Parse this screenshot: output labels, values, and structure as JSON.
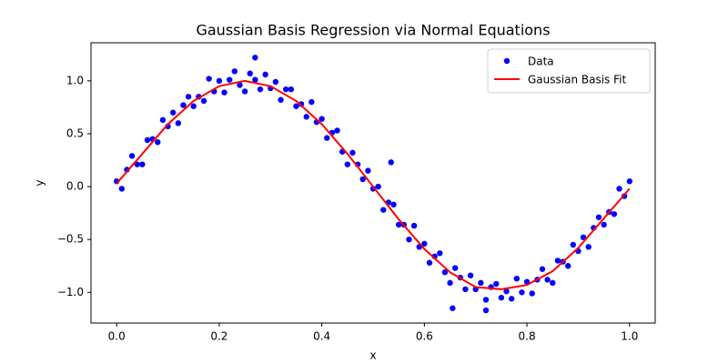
{
  "chart_data": {
    "type": "scatter",
    "title": "Gaussian Basis Regression via Normal Equations",
    "xlabel": "x",
    "ylabel": "y",
    "xlim": [
      -0.05,
      1.05
    ],
    "ylim": [
      -1.29,
      1.36
    ],
    "xticks": [
      {
        "value": 0,
        "label": "0.0"
      },
      {
        "value": 0.2,
        "label": "0.2"
      },
      {
        "value": 0.4,
        "label": "0.4"
      },
      {
        "value": 0.6,
        "label": "0.6"
      },
      {
        "value": 0.8,
        "label": "0.8"
      },
      {
        "value": 1,
        "label": "1.0"
      }
    ],
    "yticks": [
      {
        "value": -1,
        "label": "−1.0"
      },
      {
        "value": -0.5,
        "label": "−0.5"
      },
      {
        "value": 0,
        "label": "0.0"
      },
      {
        "value": 0.5,
        "label": "0.5"
      },
      {
        "value": 1,
        "label": "1.0"
      }
    ],
    "grid": false,
    "legend": "upper right",
    "series": [
      {
        "name": "Data",
        "type": "scatter",
        "color": "#0000ff",
        "x": [
          0,
          0.01,
          0.02,
          0.03,
          0.04,
          0.05,
          0.06,
          0.07,
          0.08,
          0.09,
          0.1,
          0.11,
          0.12,
          0.13,
          0.14,
          0.15,
          0.16,
          0.17,
          0.18,
          0.19,
          0.2,
          0.21,
          0.22,
          0.23,
          0.24,
          0.25,
          0.26,
          0.27,
          0.28,
          0.29,
          0.3,
          0.31,
          0.32,
          0.33,
          0.34,
          0.35,
          0.36,
          0.37,
          0.38,
          0.39,
          0.4,
          0.41,
          0.42,
          0.43,
          0.44,
          0.45,
          0.46,
          0.47,
          0.48,
          0.49,
          0.5,
          0.51,
          0.52,
          0.53,
          0.54,
          0.55,
          0.56,
          0.57,
          0.58,
          0.59,
          0.6,
          0.61,
          0.62,
          0.63,
          0.64,
          0.65,
          0.66,
          0.67,
          0.68,
          0.69,
          0.7,
          0.71,
          0.72,
          0.73,
          0.74,
          0.75,
          0.76,
          0.77,
          0.78,
          0.79,
          0.8,
          0.81,
          0.82,
          0.83,
          0.84,
          0.85,
          0.86,
          0.87,
          0.88,
          0.89,
          0.9,
          0.91,
          0.92,
          0.93,
          0.94,
          0.95,
          0.96,
          0.97,
          0.98,
          0.99,
          1,
          0.27,
          0.655,
          0.72,
          0.535
        ],
        "values": [
          0.05,
          -0.02,
          0.16,
          0.29,
          0.21,
          0.21,
          0.44,
          0.45,
          0.42,
          0.63,
          0.57,
          0.7,
          0.6,
          0.77,
          0.85,
          0.76,
          0.85,
          0.81,
          1.02,
          0.9,
          1.0,
          0.89,
          1.01,
          1.09,
          0.96,
          0.9,
          1.07,
          1.01,
          0.92,
          1.06,
          0.93,
          0.99,
          0.82,
          0.92,
          0.92,
          0.76,
          0.78,
          0.66,
          0.8,
          0.61,
          0.64,
          0.46,
          0.51,
          0.53,
          0.33,
          0.21,
          0.32,
          0.21,
          0.07,
          0.15,
          -0.02,
          0.0,
          -0.22,
          -0.15,
          -0.17,
          -0.36,
          -0.36,
          -0.5,
          -0.37,
          -0.57,
          -0.54,
          -0.72,
          -0.66,
          -0.63,
          -0.81,
          -0.91,
          -0.77,
          -0.86,
          -0.97,
          -0.84,
          -0.97,
          -0.91,
          -1.07,
          -0.95,
          -0.92,
          -1.05,
          -0.99,
          -1.06,
          -0.87,
          -1.0,
          -0.9,
          -1.01,
          -0.88,
          -0.78,
          -0.88,
          -0.91,
          -0.7,
          -0.71,
          -0.75,
          -0.55,
          -0.61,
          -0.48,
          -0.57,
          -0.39,
          -0.29,
          -0.36,
          -0.24,
          -0.26,
          -0.02,
          -0.09,
          0.05,
          1.22,
          -1.15,
          -1.17,
          0.23
        ]
      },
      {
        "name": "Gaussian Basis Fit",
        "type": "line",
        "color": "#ff0000",
        "x": [
          0,
          0.05,
          0.1,
          0.15,
          0.2,
          0.25,
          0.3,
          0.35,
          0.4,
          0.45,
          0.5,
          0.55,
          0.6,
          0.65,
          0.7,
          0.75,
          0.8,
          0.85,
          0.9,
          0.95,
          1
        ],
        "values": [
          0.03,
          0.31,
          0.59,
          0.81,
          0.95,
          1.0,
          0.95,
          0.81,
          0.59,
          0.31,
          0.0,
          -0.31,
          -0.59,
          -0.81,
          -0.95,
          -0.97,
          -0.93,
          -0.8,
          -0.58,
          -0.3,
          -0.02
        ]
      }
    ]
  }
}
